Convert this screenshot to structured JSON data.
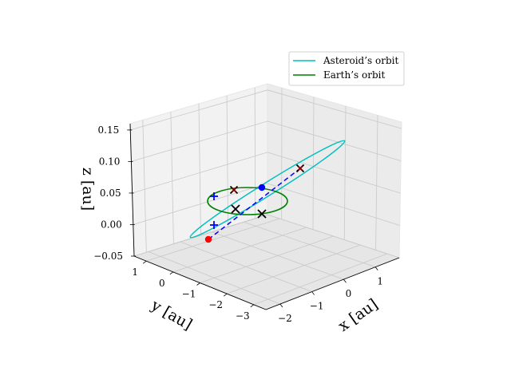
{
  "chart_data": {
    "type": "line",
    "projection": "3d",
    "axes": {
      "x": {
        "label": "x [au]",
        "ticks": [
          "−2",
          "−1",
          "0",
          "1"
        ]
      },
      "y": {
        "label": "y [au]",
        "ticks": [
          "1",
          "0",
          "−1",
          "−2",
          "−3"
        ]
      },
      "z": {
        "label": "z [au]",
        "ticks": [
          "−0.05",
          "0.00",
          "0.05",
          "0.10",
          "0.15"
        ]
      }
    },
    "grid": true,
    "legend": {
      "position": "top-right"
    },
    "series": [
      {
        "name": "Asteroid’s orbit",
        "color": "#00bfbf",
        "style": "solid"
      },
      {
        "name": "Earth’s orbit",
        "color": "#008000",
        "style": "solid"
      }
    ],
    "markers": {
      "red_dot_color": "#ff0000",
      "blue_dot_color": "#0000ff",
      "blue_plus_color": "#0000ff",
      "black_x_color": "#000000",
      "dark_red_x_color": "#8b0000",
      "dashed_line_color": "#0000ff"
    }
  }
}
